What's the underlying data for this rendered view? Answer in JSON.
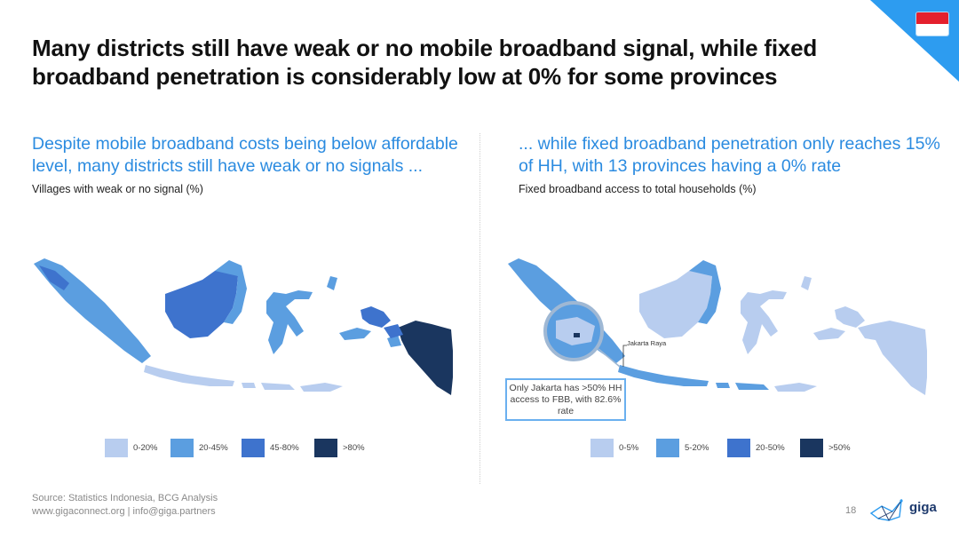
{
  "colors": {
    "c1": "#b8cdef",
    "c2": "#5b9ee0",
    "c3": "#3e73cd",
    "c4": "#1a365f",
    "accent": "#2b8be0",
    "corner": "#2d9cf0"
  },
  "title": "Many districts still have weak or no mobile broadband signal, while fixed broadband penetration is considerably low at 0% for some provinces",
  "left": {
    "subtitle": "Despite mobile broadband costs being below affordable level, many districts still have weak or no signals ...",
    "caption": "Villages with weak or no signal (%)",
    "legend": [
      {
        "label": "0-20%",
        "color": "#b8cdef"
      },
      {
        "label": "20-45%",
        "color": "#5b9ee0"
      },
      {
        "label": "45-80%",
        "color": "#3e73cd"
      },
      {
        "label": ">80%",
        "color": "#1a365f"
      }
    ]
  },
  "right": {
    "subtitle": "... while fixed broadband penetration only reaches 15% of HH, with 13 provinces having a 0% rate",
    "caption": "Fixed broadband access to total households (%)",
    "jakarta_label": "Jakarta Raya",
    "callout": "Only Jakarta has >50% HH access to FBB, with 82.6% rate",
    "legend": [
      {
        "label": "0-5%",
        "color": "#b8cdef"
      },
      {
        "label": "5-20%",
        "color": "#5b9ee0"
      },
      {
        "label": "20-50%",
        "color": "#3e73cd"
      },
      {
        "label": ">50%",
        "color": "#1a365f"
      }
    ]
  },
  "footer": {
    "source": "Source: Statistics Indonesia, BCG Analysis",
    "links": "www.gigaconnect.org  |  info@giga.partners"
  },
  "page_number": "18",
  "logo_text": "giga"
}
